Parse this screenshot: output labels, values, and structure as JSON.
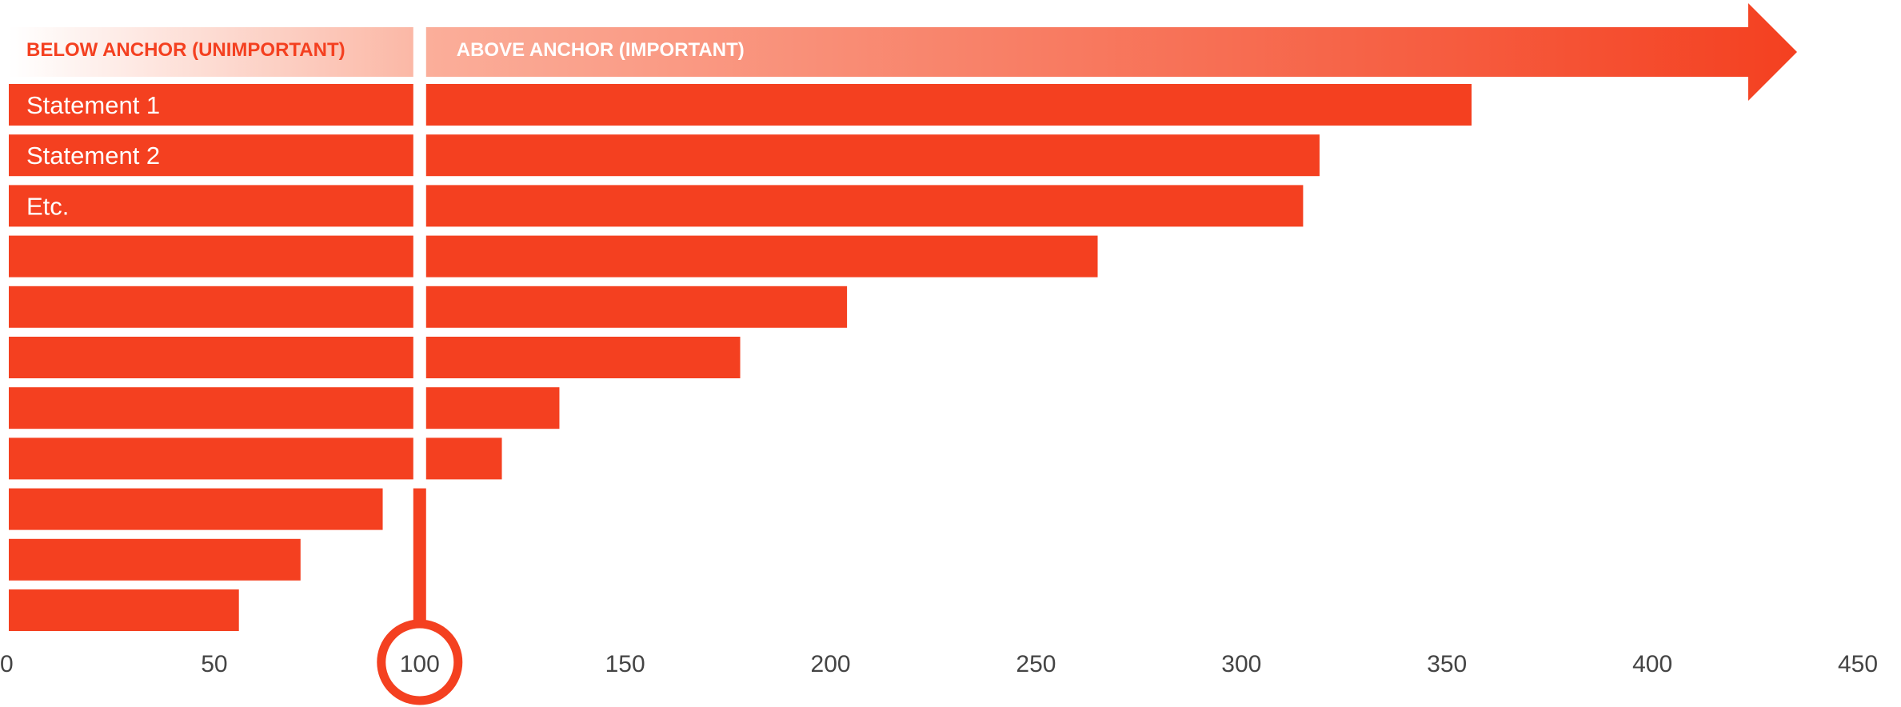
{
  "chart_data": {
    "type": "bar",
    "orientation": "horizontal",
    "anchor": 100,
    "headers": {
      "below": "BELOW ANCHOR (UNIMPORTANT)",
      "above": "ABOVE ANCHOR (IMPORTANT)"
    },
    "categories": [
      "Statement 1",
      "Statement 2",
      "Etc.",
      "",
      "",
      "",
      "",
      "",
      "",
      "",
      ""
    ],
    "values": [
      356,
      319,
      315,
      265,
      204,
      178,
      134,
      120,
      91,
      71,
      56
    ],
    "xlim": [
      0,
      450
    ],
    "xticks": [
      "0",
      "50",
      "100",
      "150",
      "200",
      "250",
      "300",
      "350",
      "400",
      "450"
    ],
    "grid": false,
    "colors": {
      "bar": "#F44020",
      "header_below_text": "#F44020",
      "header_above_text": "#FFFFFF",
      "gradient_light": "#FBB8A6",
      "gradient_dark": "#F44020"
    }
  }
}
